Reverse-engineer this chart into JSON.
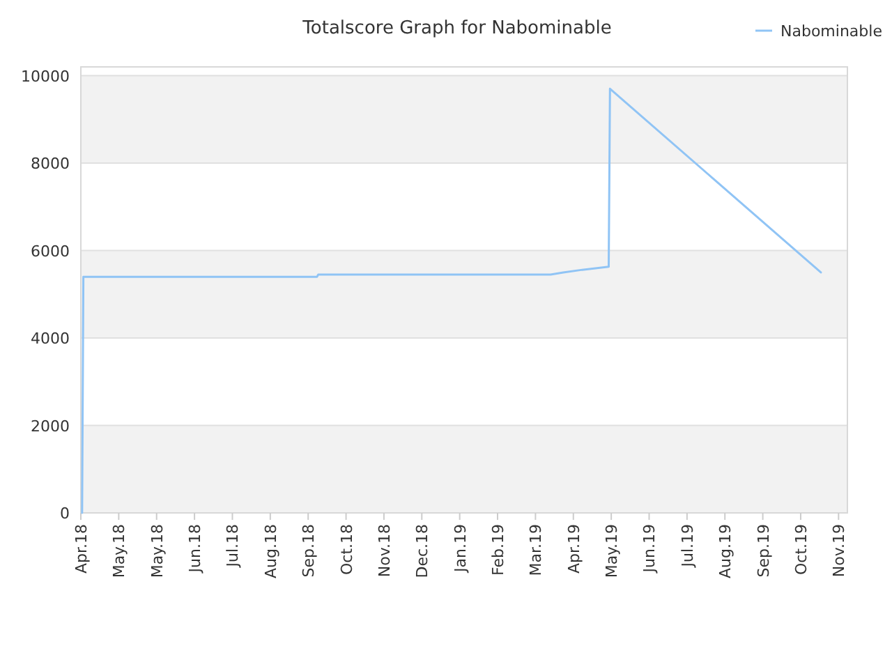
{
  "chart_data": {
    "type": "line",
    "title": "Totalscore Graph for Nabominable",
    "x": [
      "2018-04-02",
      "2018-04-03",
      "2018-10-05",
      "2018-10-06",
      "2019-04-08",
      "2019-04-18",
      "2019-05-03",
      "2019-05-24",
      "2019-05-25",
      "2019-11-08"
    ],
    "series": [
      {
        "name": "Nabominable",
        "color": "#90c4f5",
        "values": [
          0,
          5400,
          5400,
          5450,
          5450,
          5500,
          5560,
          5630,
          9700,
          5500
        ]
      }
    ],
    "xlim": [
      "2018-04-01",
      "2019-11-29"
    ],
    "xticks": [
      {
        "value": "2018-04-01",
        "label": "Apr.18"
      },
      {
        "value": "2018-05-01",
        "label": "May.18"
      },
      {
        "value": "2018-05-31",
        "label": "May.18"
      },
      {
        "value": "2018-06-30",
        "label": "Jun.18"
      },
      {
        "value": "2018-07-30",
        "label": "Jul.18"
      },
      {
        "value": "2018-08-29",
        "label": "Aug.18"
      },
      {
        "value": "2018-09-28",
        "label": "Sep.18"
      },
      {
        "value": "2018-10-28",
        "label": "Oct.18"
      },
      {
        "value": "2018-11-27",
        "label": "Nov.18"
      },
      {
        "value": "2018-12-27",
        "label": "Dec.18"
      },
      {
        "value": "2019-01-26",
        "label": "Jan.19"
      },
      {
        "value": "2019-02-25",
        "label": "Feb.19"
      },
      {
        "value": "2019-03-27",
        "label": "Mar.19"
      },
      {
        "value": "2019-04-26",
        "label": "Apr.19"
      },
      {
        "value": "2019-05-26",
        "label": "May.19"
      },
      {
        "value": "2019-06-25",
        "label": "Jun.19"
      },
      {
        "value": "2019-07-25",
        "label": "Jul.19"
      },
      {
        "value": "2019-08-24",
        "label": "Aug.19"
      },
      {
        "value": "2019-09-23",
        "label": "Sep.19"
      },
      {
        "value": "2019-10-23",
        "label": "Oct.19"
      },
      {
        "value": "2019-11-22",
        "label": "Nov.19"
      }
    ],
    "ylim": [
      0,
      10200
    ],
    "yticks": [
      0,
      2000,
      4000,
      6000,
      8000,
      10000
    ],
    "grid": "y",
    "legend": "top right",
    "marker": "none",
    "line_style": "solid"
  }
}
